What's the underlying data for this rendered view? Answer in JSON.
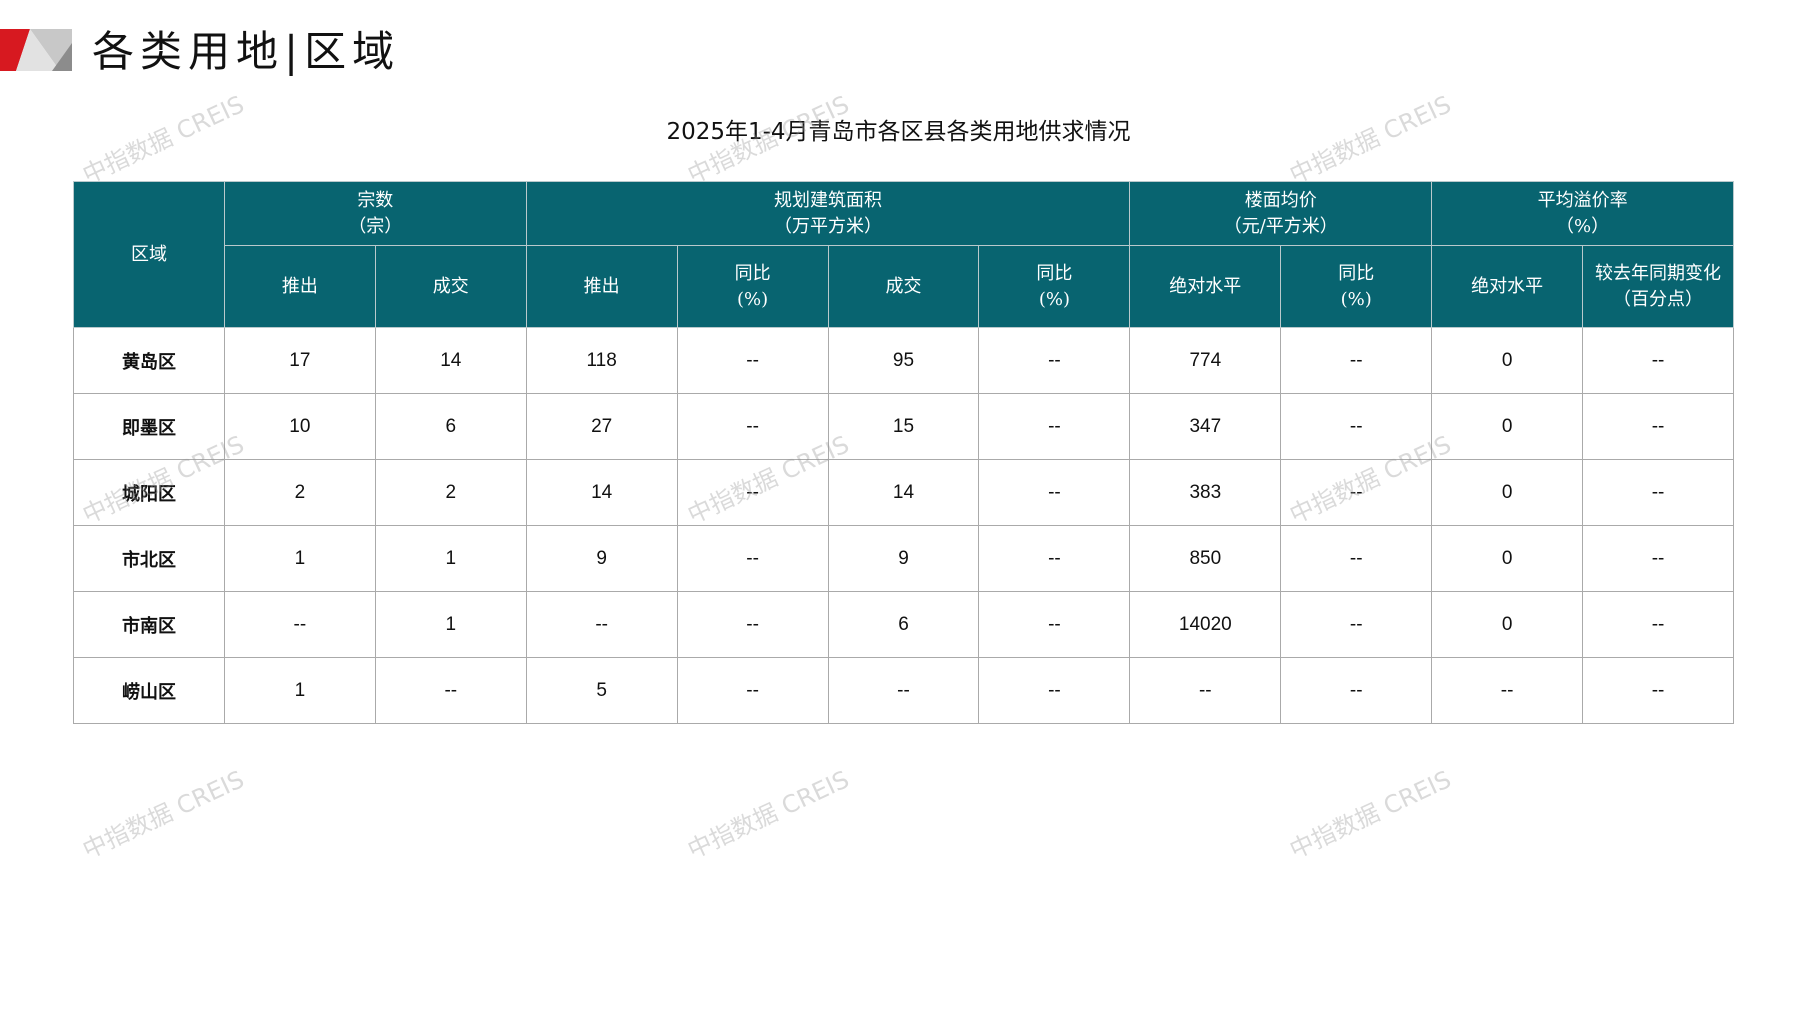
{
  "header": {
    "title": "各类用地|区域"
  },
  "table_title": "2025年1-4月青岛市各区县各类用地供求情况",
  "watermark": "中指数据 CREIS",
  "columns": {
    "region": "区域",
    "groups": [
      "宗数\n（宗）",
      "规划建筑面积\n（万平方米）",
      "楼面均价\n（元/平方米）",
      "平均溢价率\n（%）"
    ],
    "sub": [
      "推出",
      "成交",
      "推出",
      "同比\n(%)",
      "成交",
      "同比\n(%)",
      "绝对水平",
      "同比\n(%)",
      "绝对水平",
      "较去年同期变化\n（百分点）"
    ]
  },
  "rows": [
    {
      "region": "黄岛区",
      "values": [
        "17",
        "14",
        "118",
        "--",
        "95",
        "--",
        "774",
        "--",
        "0",
        "--"
      ]
    },
    {
      "region": "即墨区",
      "values": [
        "10",
        "6",
        "27",
        "--",
        "15",
        "--",
        "347",
        "--",
        "0",
        "--"
      ]
    },
    {
      "region": "城阳区",
      "values": [
        "2",
        "2",
        "14",
        "--",
        "14",
        "--",
        "383",
        "--",
        "0",
        "--"
      ]
    },
    {
      "region": "市北区",
      "values": [
        "1",
        "1",
        "9",
        "--",
        "9",
        "--",
        "850",
        "--",
        "0",
        "--"
      ]
    },
    {
      "region": "市南区",
      "values": [
        "--",
        "1",
        "--",
        "--",
        "6",
        "--",
        "14020",
        "--",
        "0",
        "--"
      ]
    },
    {
      "region": "崂山区",
      "values": [
        "1",
        "--",
        "5",
        "--",
        "--",
        "--",
        "--",
        "--",
        "--",
        "--"
      ]
    }
  ],
  "colors": {
    "header_bg": "#086470",
    "accent_red": "#d71920"
  }
}
